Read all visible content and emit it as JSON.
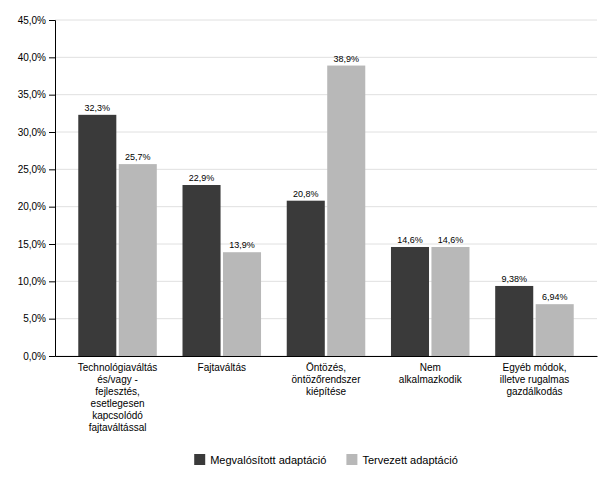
{
  "chart_data": {
    "type": "bar",
    "categories": [
      "Technológiaváltás\nés/vagy -\nfejlesztés,\nesetlegesen\nkapcsolódó\nfajtaváltással",
      "Fajtaváltás",
      "Öntözés,\nöntözőrendszer\nkiépítése",
      "Nem\nalkalmazkodik",
      "Egyéb módok,\nilletve rugalmas\ngazdálkodás"
    ],
    "series": [
      {
        "name": "Megvalósított adaptáció",
        "color": "#3a3a3a",
        "values": [
          32.3,
          22.9,
          20.8,
          14.6,
          9.38
        ],
        "value_labels": [
          "32,3%",
          "22,9%",
          "20,8%",
          "14,6%",
          "9,38%"
        ]
      },
      {
        "name": "Tervezett adaptáció",
        "color": "#b8b8b8",
        "values": [
          25.7,
          13.9,
          38.9,
          14.6,
          6.94
        ],
        "value_labels": [
          "25,7%",
          "13,9%",
          "38,9%",
          "14,6%",
          "6,94%"
        ]
      }
    ],
    "ylim": [
      0,
      45
    ],
    "yticks": [
      {
        "value": 0,
        "label": "0,0%"
      },
      {
        "value": 5,
        "label": "5,0%"
      },
      {
        "value": 10,
        "label": "10,0%"
      },
      {
        "value": 15,
        "label": "15,0%"
      },
      {
        "value": 20,
        "label": "20,0%"
      },
      {
        "value": 25,
        "label": "25,0%"
      },
      {
        "value": 30,
        "label": "30,0%"
      },
      {
        "value": 35,
        "label": "35,0%"
      },
      {
        "value": 40,
        "label": "40,0%"
      },
      {
        "value": 45,
        "label": "45,0%"
      }
    ],
    "grid": true,
    "data_labels": true,
    "legend": "bottom"
  }
}
